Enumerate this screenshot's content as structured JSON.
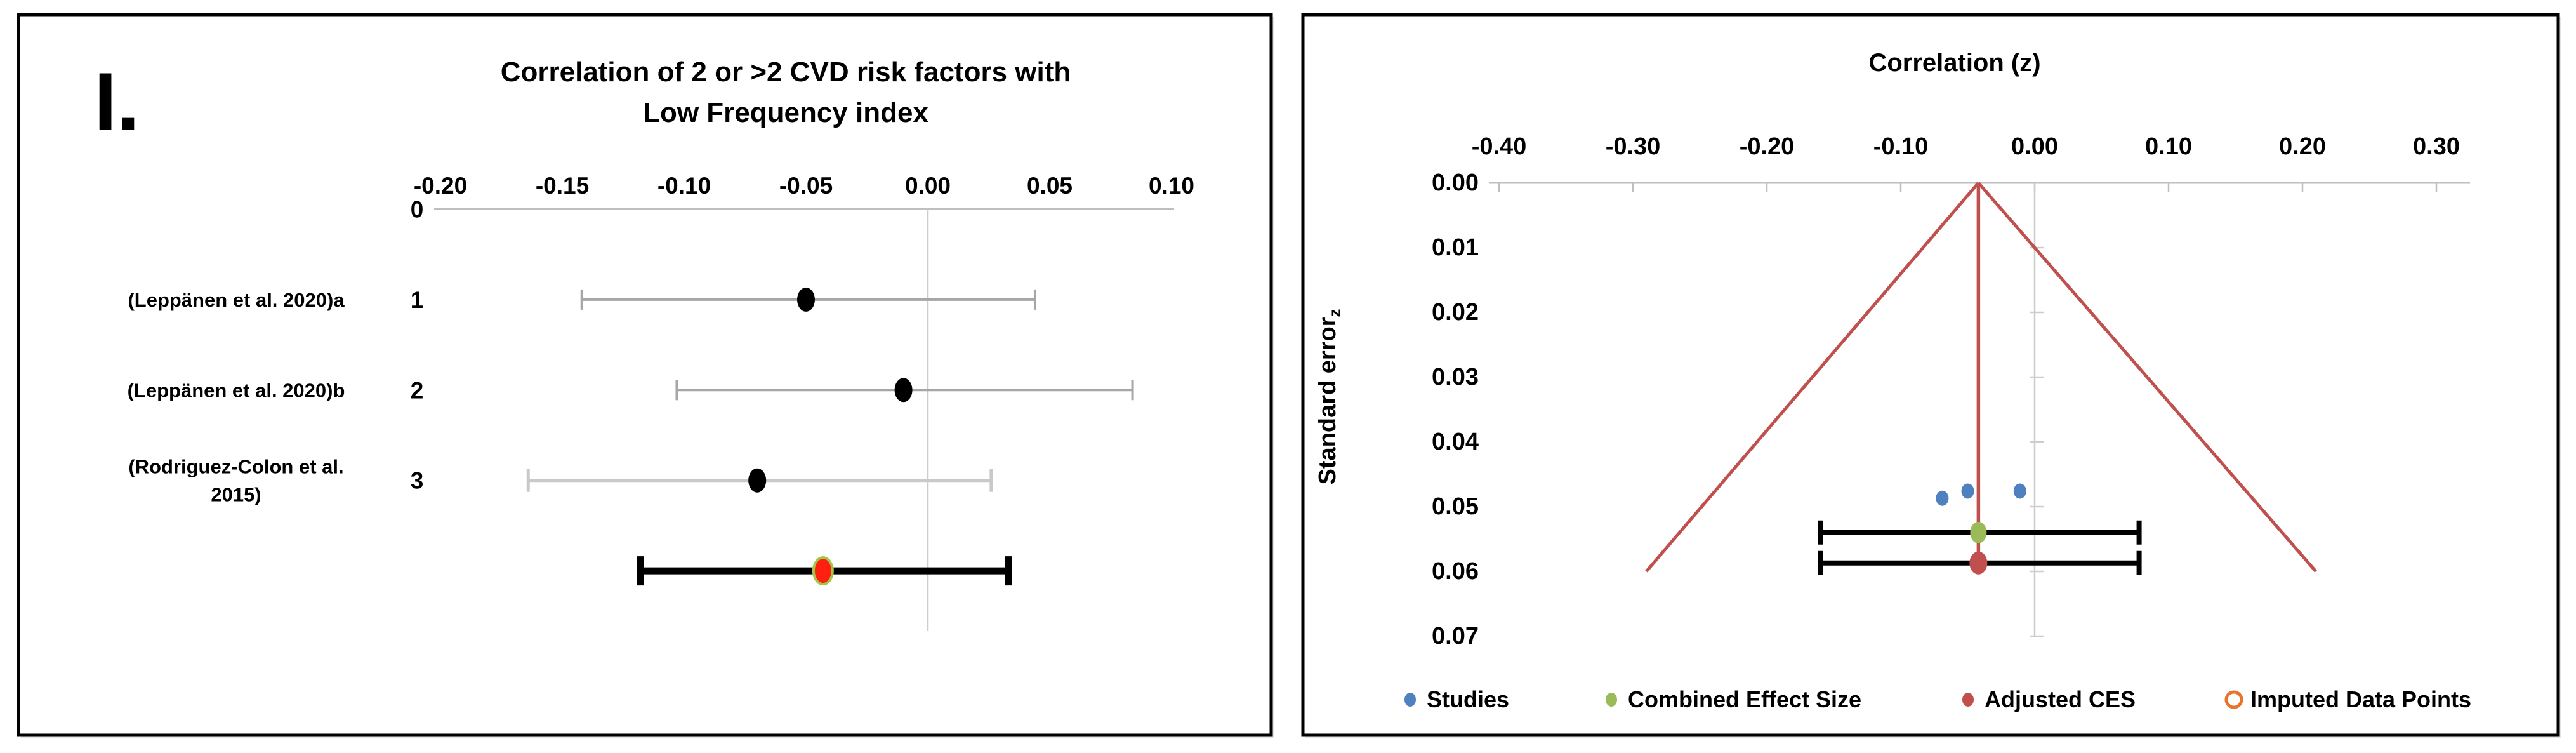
{
  "figure": {
    "panel_label": "I."
  },
  "colors": {
    "studies_blue": "#4E81BD",
    "combined_green": "#9BBB59",
    "adjusted_red": "#C0504D",
    "imputed_orange": "#E8742C",
    "summary_point_red": "#FF2012",
    "summary_ring_green": "#A3C648",
    "funnel_red": "#C0504D",
    "axis_gray": "#BFBFBF",
    "gridline_gray": "#CDCDCD",
    "errorbar_gray": "#A6A6A6",
    "errorbar_light_gray": "#C9C9C9",
    "errorbar_black": "#000000",
    "border_black": "#000000",
    "text_black": "#000000"
  },
  "chart_data": [
    {
      "type": "scatter",
      "subtype": "forest-plot",
      "panel": "left",
      "title_lines": [
        "Correlation of 2 or >2  CVD risk factors with",
        "Low Frequency index"
      ],
      "xlabel": "",
      "ylabel": "",
      "xlim": [
        -0.2,
        0.1
      ],
      "ylim_rows": [
        0,
        5
      ],
      "grid": "off",
      "x_ticks": [
        {
          "label": "-0.20",
          "value": -0.2
        },
        {
          "label": "-0.15",
          "value": -0.15
        },
        {
          "label": "-0.10",
          "value": -0.1
        },
        {
          "label": "-0.05",
          "value": -0.05
        },
        {
          "label": "0.00",
          "value": 0.0
        },
        {
          "label": "0.05",
          "value": 0.05
        },
        {
          "label": "0.10",
          "value": 0.1
        }
      ],
      "y_row_labels": [
        {
          "label": "0",
          "row": 0
        },
        {
          "label": "1",
          "row": 1
        },
        {
          "label": "2",
          "row": 2
        },
        {
          "label": "3",
          "row": 3
        }
      ],
      "zero_line_x": 0.0,
      "studies": [
        {
          "label_lines": [
            "(Leppänen et al. 2020)a"
          ],
          "row": 1,
          "estimate": -0.05,
          "ci_low": -0.142,
          "ci_high": 0.044
        },
        {
          "label_lines": [
            "(Leppänen et al. 2020)b"
          ],
          "row": 2,
          "estimate": -0.01,
          "ci_low": -0.103,
          "ci_high": 0.084
        },
        {
          "label_lines": [
            "(Rodriguez-Colon et al.",
            "2015)"
          ],
          "row": 3,
          "estimate": -0.07,
          "ci_low": -0.164,
          "ci_high": 0.026
        }
      ],
      "summary": {
        "row": 4,
        "estimate": -0.043,
        "ci_low": -0.118,
        "ci_high": 0.033
      }
    },
    {
      "type": "scatter",
      "subtype": "funnel-plot",
      "panel": "right",
      "title": "Correlation (z)",
      "xlabel": "Correlation (z)",
      "ylabel_main": "Standard error",
      "ylabel_sub": "z",
      "xlim": [
        -0.4,
        0.3
      ],
      "ylim": [
        0.0,
        0.07
      ],
      "grid": "off",
      "legend_position": "bottom",
      "x_ticks": [
        {
          "label": "-0.40",
          "value": -0.4
        },
        {
          "label": "-0.30",
          "value": -0.3
        },
        {
          "label": "-0.20",
          "value": -0.2
        },
        {
          "label": "-0.10",
          "value": -0.1
        },
        {
          "label": "0.00",
          "value": 0.0
        },
        {
          "label": "0.10",
          "value": 0.1
        },
        {
          "label": "0.20",
          "value": 0.2
        },
        {
          "label": "0.30",
          "value": 0.3
        }
      ],
      "y_ticks": [
        {
          "label": "0.00",
          "value": 0.0
        },
        {
          "label": "0.01",
          "value": 0.01
        },
        {
          "label": "0.02",
          "value": 0.02
        },
        {
          "label": "0.03",
          "value": 0.03
        },
        {
          "label": "0.04",
          "value": 0.04
        },
        {
          "label": "0.05",
          "value": 0.05
        },
        {
          "label": "0.06",
          "value": 0.06
        },
        {
          "label": "0.07",
          "value": 0.07
        }
      ],
      "zero_line": {
        "x": 0.0,
        "end_se": 0.07
      },
      "studies_points": [
        {
          "x": -0.069,
          "se": 0.0487
        },
        {
          "x": -0.05,
          "se": 0.0476
        },
        {
          "x": -0.011,
          "se": 0.0476
        }
      ],
      "combined": {
        "x": -0.042,
        "se": 0.054,
        "ci_low": -0.16,
        "ci_high": 0.078
      },
      "adjusted": {
        "x": -0.042,
        "se": 0.0587,
        "ci_low": -0.16,
        "ci_high": 0.078
      },
      "funnel": {
        "apex_x": -0.042,
        "apex_se": 0.0,
        "left_x": -0.29,
        "right_x": 0.21,
        "end_se": 0.06
      },
      "imputed_points": [],
      "legend": [
        {
          "label": "Studies",
          "marker": "dot",
          "color_key": "studies_blue"
        },
        {
          "label": "Combined Effect Size",
          "marker": "dot",
          "color_key": "combined_green"
        },
        {
          "label": "Adjusted CES",
          "marker": "dot",
          "color_key": "adjusted_red"
        },
        {
          "label": "Imputed Data Points",
          "marker": "ring",
          "color_key": "imputed_orange"
        }
      ]
    }
  ]
}
